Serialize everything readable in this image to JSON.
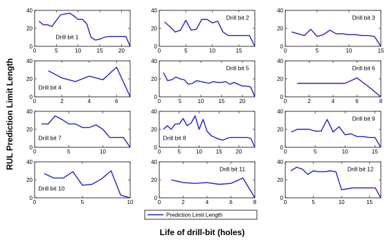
{
  "figure": {
    "ylabel": "RUL Prediction Limit Length",
    "xlabel": "Life of drill-bit (holes)",
    "legend": "Prediction Limit Length",
    "line_color": "#1f1fcf"
  },
  "chart_data": [
    {
      "type": "line",
      "title": "Drill bit 1",
      "xlim": [
        0,
        22
      ],
      "ylim": [
        0,
        40
      ],
      "xticks": [
        0,
        5,
        10,
        15,
        20
      ],
      "yticks": [
        0,
        20,
        40
      ],
      "x": [
        1,
        2,
        3,
        4,
        5,
        6,
        7,
        8,
        9,
        10,
        11,
        12,
        13,
        14,
        15,
        16,
        17,
        18,
        19,
        20,
        21,
        22
      ],
      "y": [
        28,
        24,
        24,
        22,
        29,
        35,
        36,
        37,
        34,
        30,
        30,
        25,
        10,
        7,
        8,
        10,
        11,
        11,
        11,
        11,
        11,
        0
      ]
    },
    {
      "type": "line",
      "title": "Drill bit 2",
      "xlim": [
        0,
        18
      ],
      "ylim": [
        0,
        40
      ],
      "xticks": [
        0,
        5,
        10,
        15
      ],
      "yticks": [
        0,
        20,
        40
      ],
      "x": [
        1,
        2,
        3,
        4,
        5,
        6,
        7,
        8,
        9,
        10,
        11,
        12,
        13,
        14,
        15,
        16,
        17,
        18
      ],
      "y": [
        27,
        22,
        16,
        18,
        29,
        18,
        19,
        30,
        30,
        26,
        28,
        16,
        12,
        12,
        12,
        12,
        12,
        0
      ]
    },
    {
      "type": "line",
      "title": "Drill bit 3",
      "xlim": [
        0,
        15
      ],
      "ylim": [
        0,
        40
      ],
      "xticks": [
        0,
        5,
        10,
        15
      ],
      "yticks": [
        0,
        20,
        40
      ],
      "x": [
        1,
        2,
        3,
        4,
        5,
        6,
        7,
        8,
        9,
        10,
        11,
        12,
        13,
        14,
        15
      ],
      "y": [
        16,
        14,
        12,
        19,
        11,
        13,
        18,
        14,
        14,
        13,
        13,
        12,
        12,
        11,
        0
      ]
    },
    {
      "type": "line",
      "title": "Drill bit 4",
      "xlim": [
        0,
        7
      ],
      "ylim": [
        0,
        40
      ],
      "xticks": [
        0,
        2,
        4,
        6
      ],
      "yticks": [
        0,
        20,
        40
      ],
      "x": [
        1,
        2,
        3,
        4,
        5,
        6,
        7
      ],
      "y": [
        29,
        21,
        17,
        23,
        19,
        33,
        0
      ]
    },
    {
      "type": "line",
      "title": "Drill bit 5",
      "xlim": [
        0,
        23
      ],
      "ylim": [
        0,
        40
      ],
      "xticks": [
        0,
        5,
        10,
        15,
        20
      ],
      "yticks": [
        0,
        20,
        40
      ],
      "x": [
        1,
        2,
        3,
        4,
        5,
        6,
        7,
        8,
        9,
        10,
        11,
        12,
        13,
        14,
        15,
        16,
        17,
        18,
        19,
        20,
        21,
        22,
        23
      ],
      "y": [
        27,
        18,
        19,
        22,
        20,
        19,
        14,
        15,
        18,
        17,
        16,
        15,
        17,
        16,
        16,
        17,
        14,
        16,
        14,
        12,
        12,
        11,
        0
      ]
    },
    {
      "type": "line",
      "title": "Drill bit 6",
      "xlim": [
        0,
        8
      ],
      "ylim": [
        0,
        40
      ],
      "xticks": [
        0,
        2,
        4,
        6,
        8
      ],
      "yticks": [
        0,
        20,
        40
      ],
      "x": [
        1,
        2,
        3,
        4,
        5,
        6,
        7,
        8
      ],
      "y": [
        15,
        15,
        15,
        15,
        15,
        21,
        11,
        0
      ]
    },
    {
      "type": "line",
      "title": "Drill bit 7",
      "xlim": [
        0,
        14
      ],
      "ylim": [
        0,
        40
      ],
      "xticks": [
        0,
        5,
        10
      ],
      "yticks": [
        0,
        20,
        40
      ],
      "x": [
        1,
        2,
        3,
        4,
        5,
        6,
        7,
        8,
        9,
        10,
        11,
        12,
        13,
        14
      ],
      "y": [
        26,
        26,
        35,
        31,
        26,
        26,
        22,
        22,
        25,
        20,
        11,
        11,
        11,
        0
      ]
    },
    {
      "type": "line",
      "title": "Drill bit 8",
      "xlim": [
        0,
        24
      ],
      "ylim": [
        0,
        40
      ],
      "xticks": [
        0,
        5,
        10,
        15,
        20
      ],
      "yticks": [
        0,
        20,
        40
      ],
      "x": [
        1,
        2,
        3,
        4,
        5,
        6,
        7,
        8,
        9,
        10,
        11,
        12,
        13,
        14,
        15,
        16,
        17,
        18,
        19,
        20,
        21,
        22,
        23,
        24
      ],
      "y": [
        20,
        24,
        20,
        26,
        26,
        32,
        24,
        27,
        35,
        20,
        31,
        18,
        13,
        11,
        9,
        8,
        10,
        11,
        11,
        11,
        11,
        11,
        10,
        0
      ]
    },
    {
      "type": "line",
      "title": "Drill bit 9",
      "xlim": [
        0,
        16
      ],
      "ylim": [
        0,
        40
      ],
      "xticks": [
        0,
        5,
        10,
        15
      ],
      "yticks": [
        0,
        20,
        40
      ],
      "x": [
        1,
        2,
        3,
        4,
        5,
        6,
        7,
        8,
        9,
        10,
        11,
        12,
        13,
        14,
        15,
        16
      ],
      "y": [
        17,
        20,
        20,
        20,
        18,
        18,
        31,
        17,
        23,
        14,
        15,
        12,
        12,
        11,
        11,
        0
      ]
    },
    {
      "type": "line",
      "title": "Drill bit 10",
      "xlim": [
        0,
        10
      ],
      "ylim": [
        0,
        40
      ],
      "xticks": [
        0,
        5,
        10
      ],
      "yticks": [
        0,
        20,
        40
      ],
      "x": [
        1,
        2,
        3,
        4,
        5,
        6,
        7,
        8,
        9,
        10
      ],
      "y": [
        27,
        22,
        22,
        29,
        14,
        15,
        21,
        30,
        3,
        0
      ]
    },
    {
      "type": "line",
      "title": "Drill bit 11",
      "xlim": [
        0,
        8
      ],
      "ylim": [
        0,
        40
      ],
      "xticks": [
        0,
        2,
        4,
        6,
        8
      ],
      "yticks": [
        0,
        20,
        40
      ],
      "x": [
        1,
        2,
        3,
        4,
        5,
        6,
        7,
        8
      ],
      "y": [
        20,
        17,
        16,
        17,
        15,
        16,
        22,
        0
      ]
    },
    {
      "type": "line",
      "title": "Drill bit 12",
      "xlim": [
        0,
        17
      ],
      "ylim": [
        0,
        40
      ],
      "xticks": [
        0,
        5,
        10,
        15
      ],
      "yticks": [
        0,
        20,
        40
      ],
      "x": [
        1,
        2,
        3,
        4,
        5,
        6,
        7,
        8,
        9,
        10,
        11,
        12,
        13,
        14,
        15,
        16,
        17
      ],
      "y": [
        30,
        34,
        32,
        26,
        30,
        29,
        29,
        30,
        29,
        9,
        10,
        11,
        11,
        11,
        11,
        11,
        0
      ]
    }
  ]
}
